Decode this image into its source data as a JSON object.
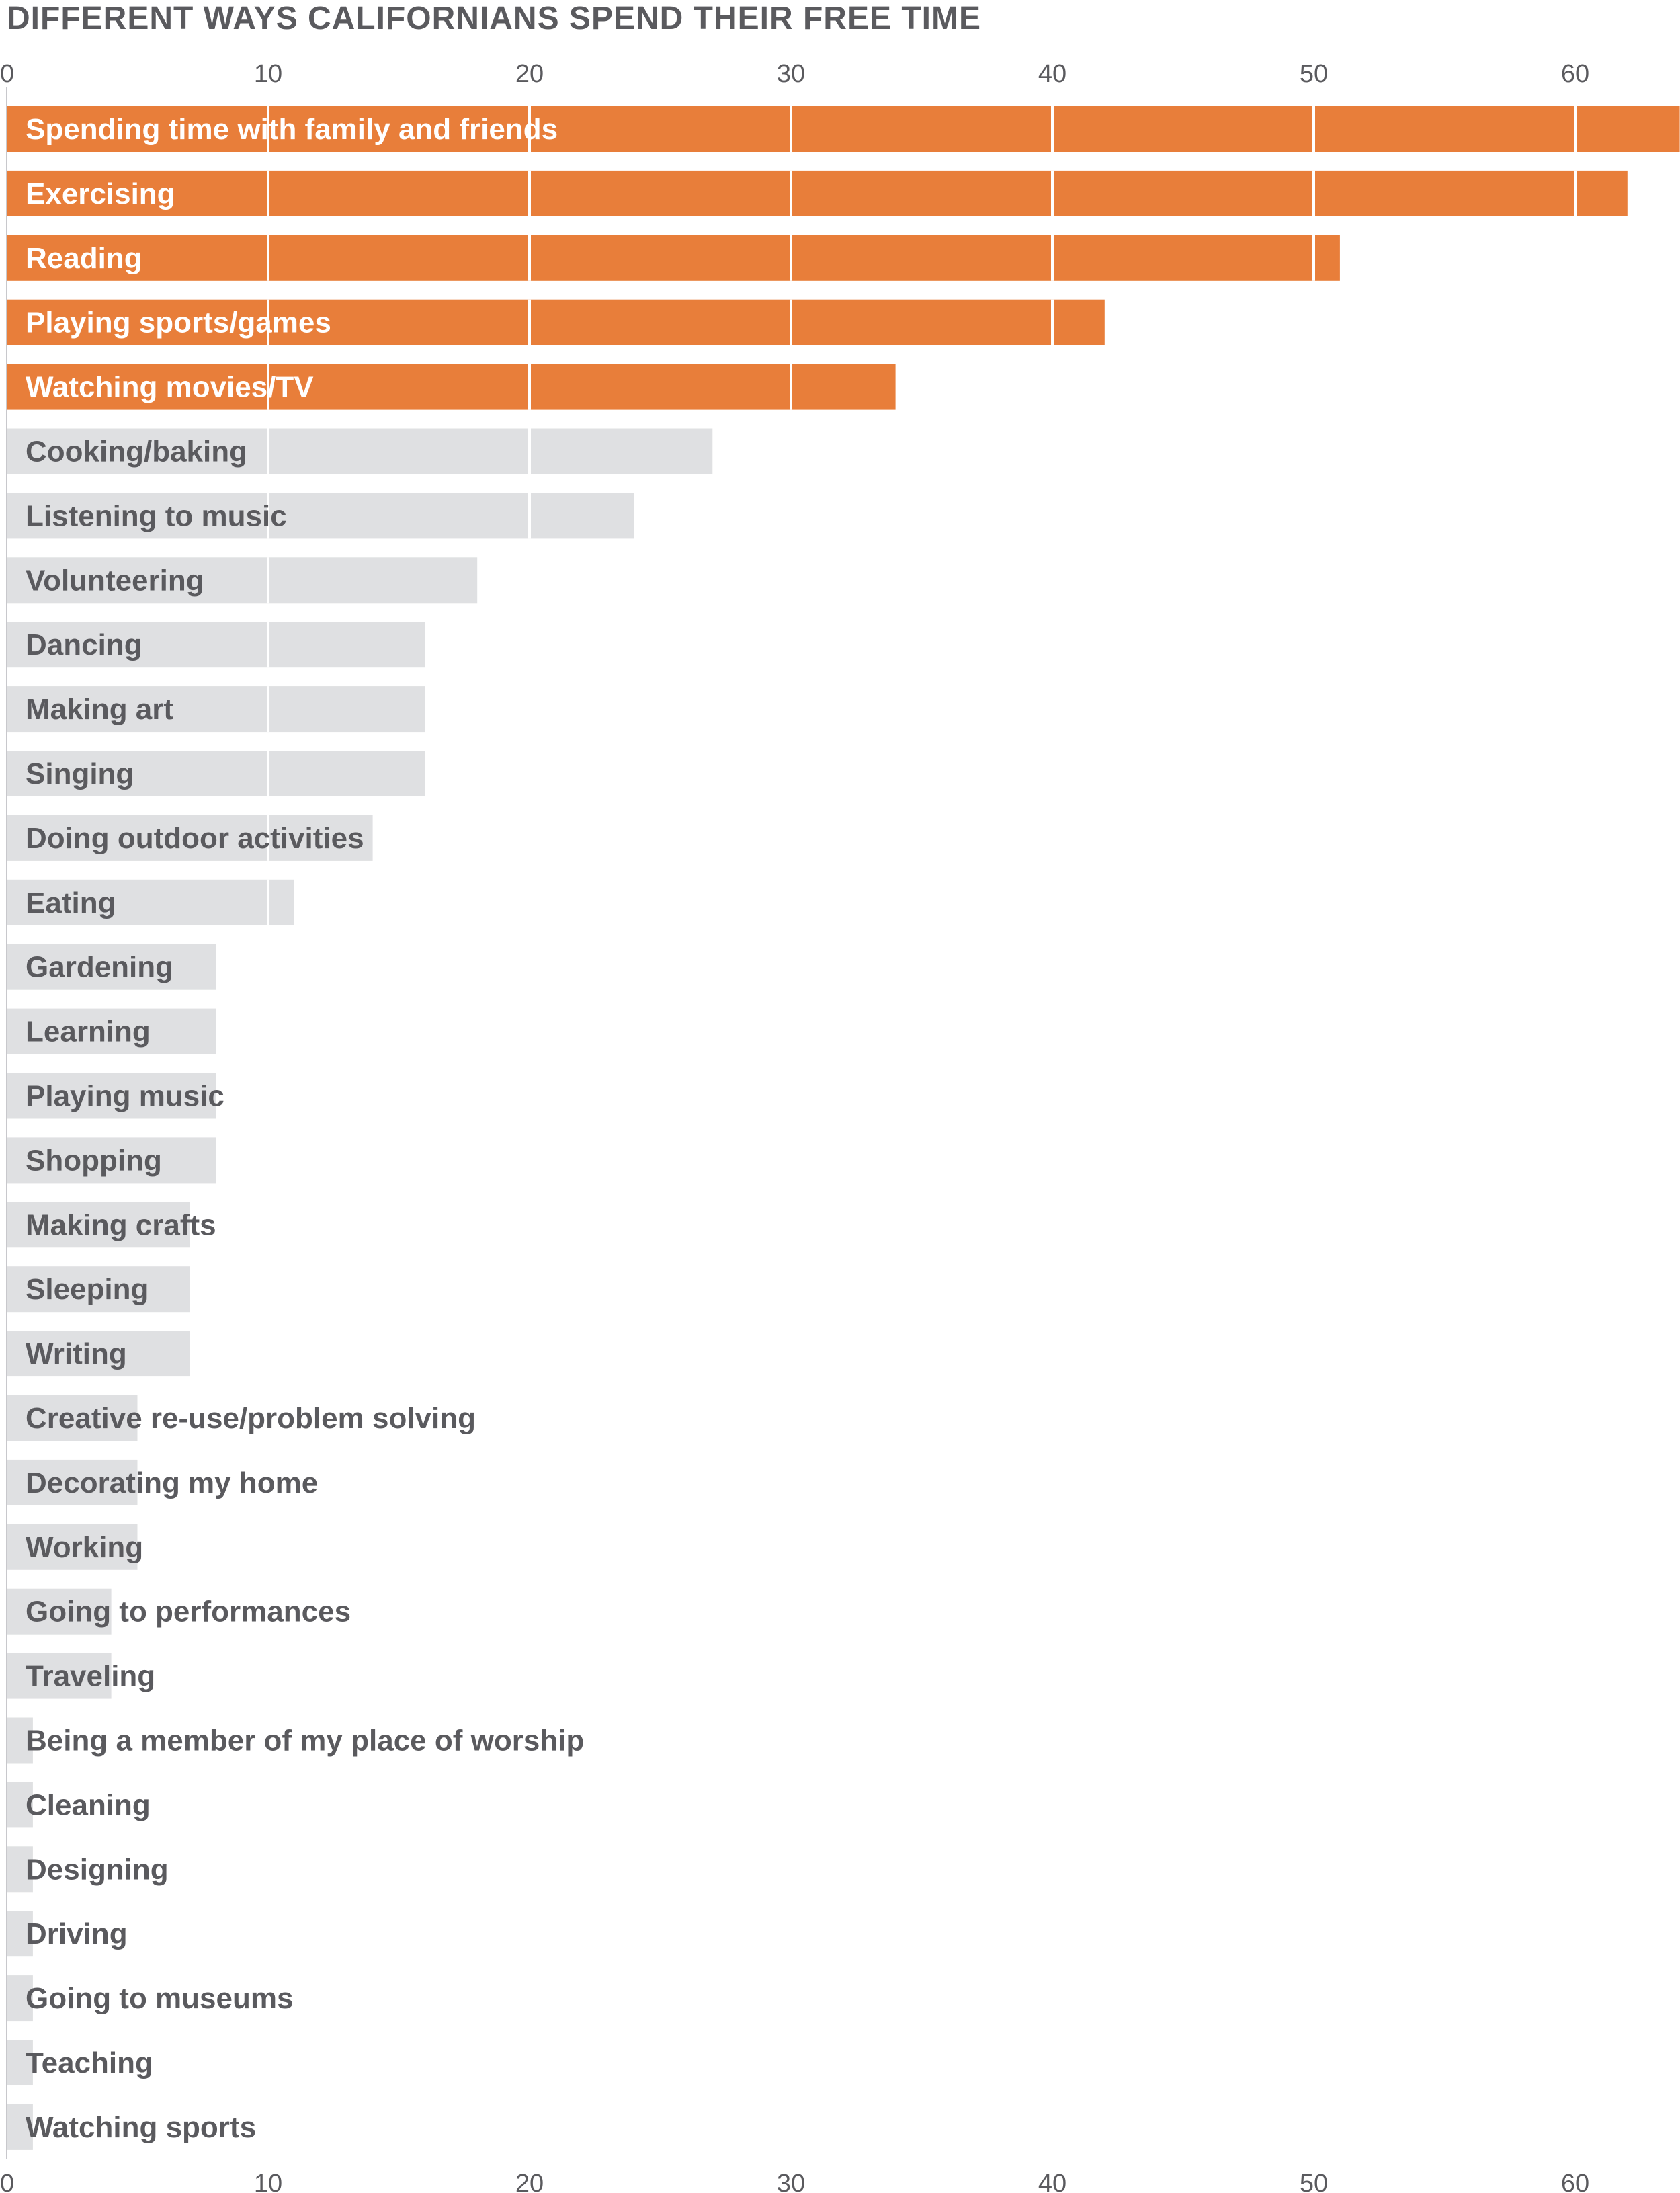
{
  "chart_data": {
    "type": "bar",
    "orientation": "horizontal",
    "title": "DIFFERENT WAYS CALIFORNIANS SPEND THEIR FREE TIME",
    "xlabel": "",
    "ylabel": "",
    "xlim": [
      0,
      64
    ],
    "grid": true,
    "ticks": [
      0,
      10,
      20,
      30,
      40,
      50,
      60
    ],
    "tick_labels_top": [
      "0",
      "10",
      "20",
      "30",
      "40",
      "50",
      "60"
    ],
    "tick_labels_bottom": [
      "0",
      "10",
      "20",
      "30",
      "40",
      "50",
      "60"
    ],
    "colors": {
      "highlight": "#e87e3a",
      "muted": "#dfe0e2",
      "highlight_text": "#ffffff",
      "muted_text": "#5a5a5e",
      "grid": "#ffffff",
      "axis_text": "#5a5a5e"
    },
    "categories": [
      "Spending time with family and friends",
      "Exercising",
      "Reading",
      "Playing sports/games",
      "Watching movies/TV",
      "Cooking/baking",
      "Listening to music",
      "Volunteering",
      "Dancing",
      "Making art",
      "Singing",
      "Doing outdoor activities",
      "Eating",
      "Gardening",
      "Learning",
      "Playing music",
      "Shopping",
      "Making crafts",
      "Sleeping",
      "Writing",
      "Creative re-use/problem solving",
      "Decorating my home",
      "Working",
      "Going to performances",
      "Traveling",
      "Being a member of my place of worship",
      "Cleaning",
      "Designing",
      "Driving",
      "Going to museums",
      "Teaching",
      "Watching sports"
    ],
    "values": [
      64,
      62,
      51,
      42,
      34,
      27,
      24,
      18,
      16,
      16,
      16,
      14,
      11,
      8,
      8,
      8,
      8,
      7,
      7,
      7,
      5,
      5,
      5,
      4,
      4,
      1,
      1,
      1,
      1,
      1,
      1,
      1
    ],
    "highlighted": [
      true,
      true,
      true,
      true,
      true,
      false,
      false,
      false,
      false,
      false,
      false,
      false,
      false,
      false,
      false,
      false,
      false,
      false,
      false,
      false,
      false,
      false,
      false,
      false,
      false,
      false,
      false,
      false,
      false,
      false,
      false,
      false
    ]
  }
}
